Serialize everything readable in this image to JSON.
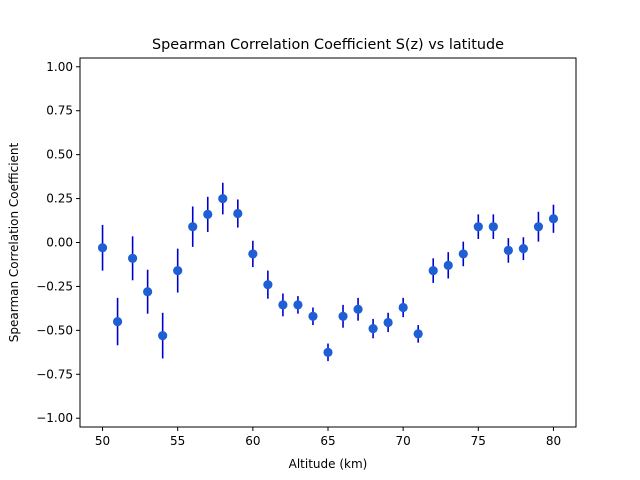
{
  "chart_data": {
    "type": "scatter",
    "title": "Spearman Correlation Coefficient S(z) vs latitude",
    "xlabel": "Altitude (km)",
    "ylabel": "Spearman Correlation Coefficient",
    "xlim": [
      48.5,
      81.5
    ],
    "ylim": [
      -1.05,
      1.05
    ],
    "xticks": [
      50,
      55,
      60,
      65,
      70,
      75,
      80
    ],
    "xtick_labels": [
      "50",
      "55",
      "60",
      "65",
      "70",
      "75",
      "80"
    ],
    "yticks": [
      -1.0,
      -0.75,
      -0.5,
      -0.25,
      0.0,
      0.25,
      0.5,
      0.75,
      1.0
    ],
    "ytick_labels": [
      "−1.00",
      "−0.75",
      "−0.50",
      "−0.25",
      "0.00",
      "0.25",
      "0.50",
      "0.75",
      "1.00"
    ],
    "grid": false,
    "series": [
      {
        "marker_color": "#1f5fd6",
        "errorbar_color": "#0000cc",
        "points": [
          {
            "x": 50,
            "y": -0.03,
            "err": 0.13
          },
          {
            "x": 51,
            "y": -0.45,
            "err": 0.135
          },
          {
            "x": 52,
            "y": -0.09,
            "err": 0.125
          },
          {
            "x": 53,
            "y": -0.28,
            "err": 0.125
          },
          {
            "x": 54,
            "y": -0.53,
            "err": 0.13
          },
          {
            "x": 55,
            "y": -0.16,
            "err": 0.125
          },
          {
            "x": 56,
            "y": 0.09,
            "err": 0.115
          },
          {
            "x": 57,
            "y": 0.16,
            "err": 0.1
          },
          {
            "x": 58,
            "y": 0.25,
            "err": 0.09
          },
          {
            "x": 59,
            "y": 0.165,
            "err": 0.08
          },
          {
            "x": 60,
            "y": -0.065,
            "err": 0.075
          },
          {
            "x": 61,
            "y": -0.24,
            "err": 0.08
          },
          {
            "x": 62,
            "y": -0.355,
            "err": 0.065
          },
          {
            "x": 63,
            "y": -0.355,
            "err": 0.05
          },
          {
            "x": 64,
            "y": -0.42,
            "err": 0.05
          },
          {
            "x": 65,
            "y": -0.625,
            "err": 0.05
          },
          {
            "x": 66,
            "y": -0.42,
            "err": 0.065
          },
          {
            "x": 67,
            "y": -0.38,
            "err": 0.065
          },
          {
            "x": 68,
            "y": -0.49,
            "err": 0.055
          },
          {
            "x": 69,
            "y": -0.455,
            "err": 0.055
          },
          {
            "x": 70,
            "y": -0.37,
            "err": 0.055
          },
          {
            "x": 71,
            "y": -0.52,
            "err": 0.05
          },
          {
            "x": 72,
            "y": -0.16,
            "err": 0.07
          },
          {
            "x": 73,
            "y": -0.13,
            "err": 0.075
          },
          {
            "x": 74,
            "y": -0.065,
            "err": 0.07
          },
          {
            "x": 75,
            "y": 0.09,
            "err": 0.07
          },
          {
            "x": 76,
            "y": 0.09,
            "err": 0.07
          },
          {
            "x": 77,
            "y": -0.045,
            "err": 0.07
          },
          {
            "x": 78,
            "y": -0.035,
            "err": 0.065
          },
          {
            "x": 79,
            "y": 0.09,
            "err": 0.085
          },
          {
            "x": 80,
            "y": 0.135,
            "err": 0.08
          }
        ]
      }
    ]
  }
}
